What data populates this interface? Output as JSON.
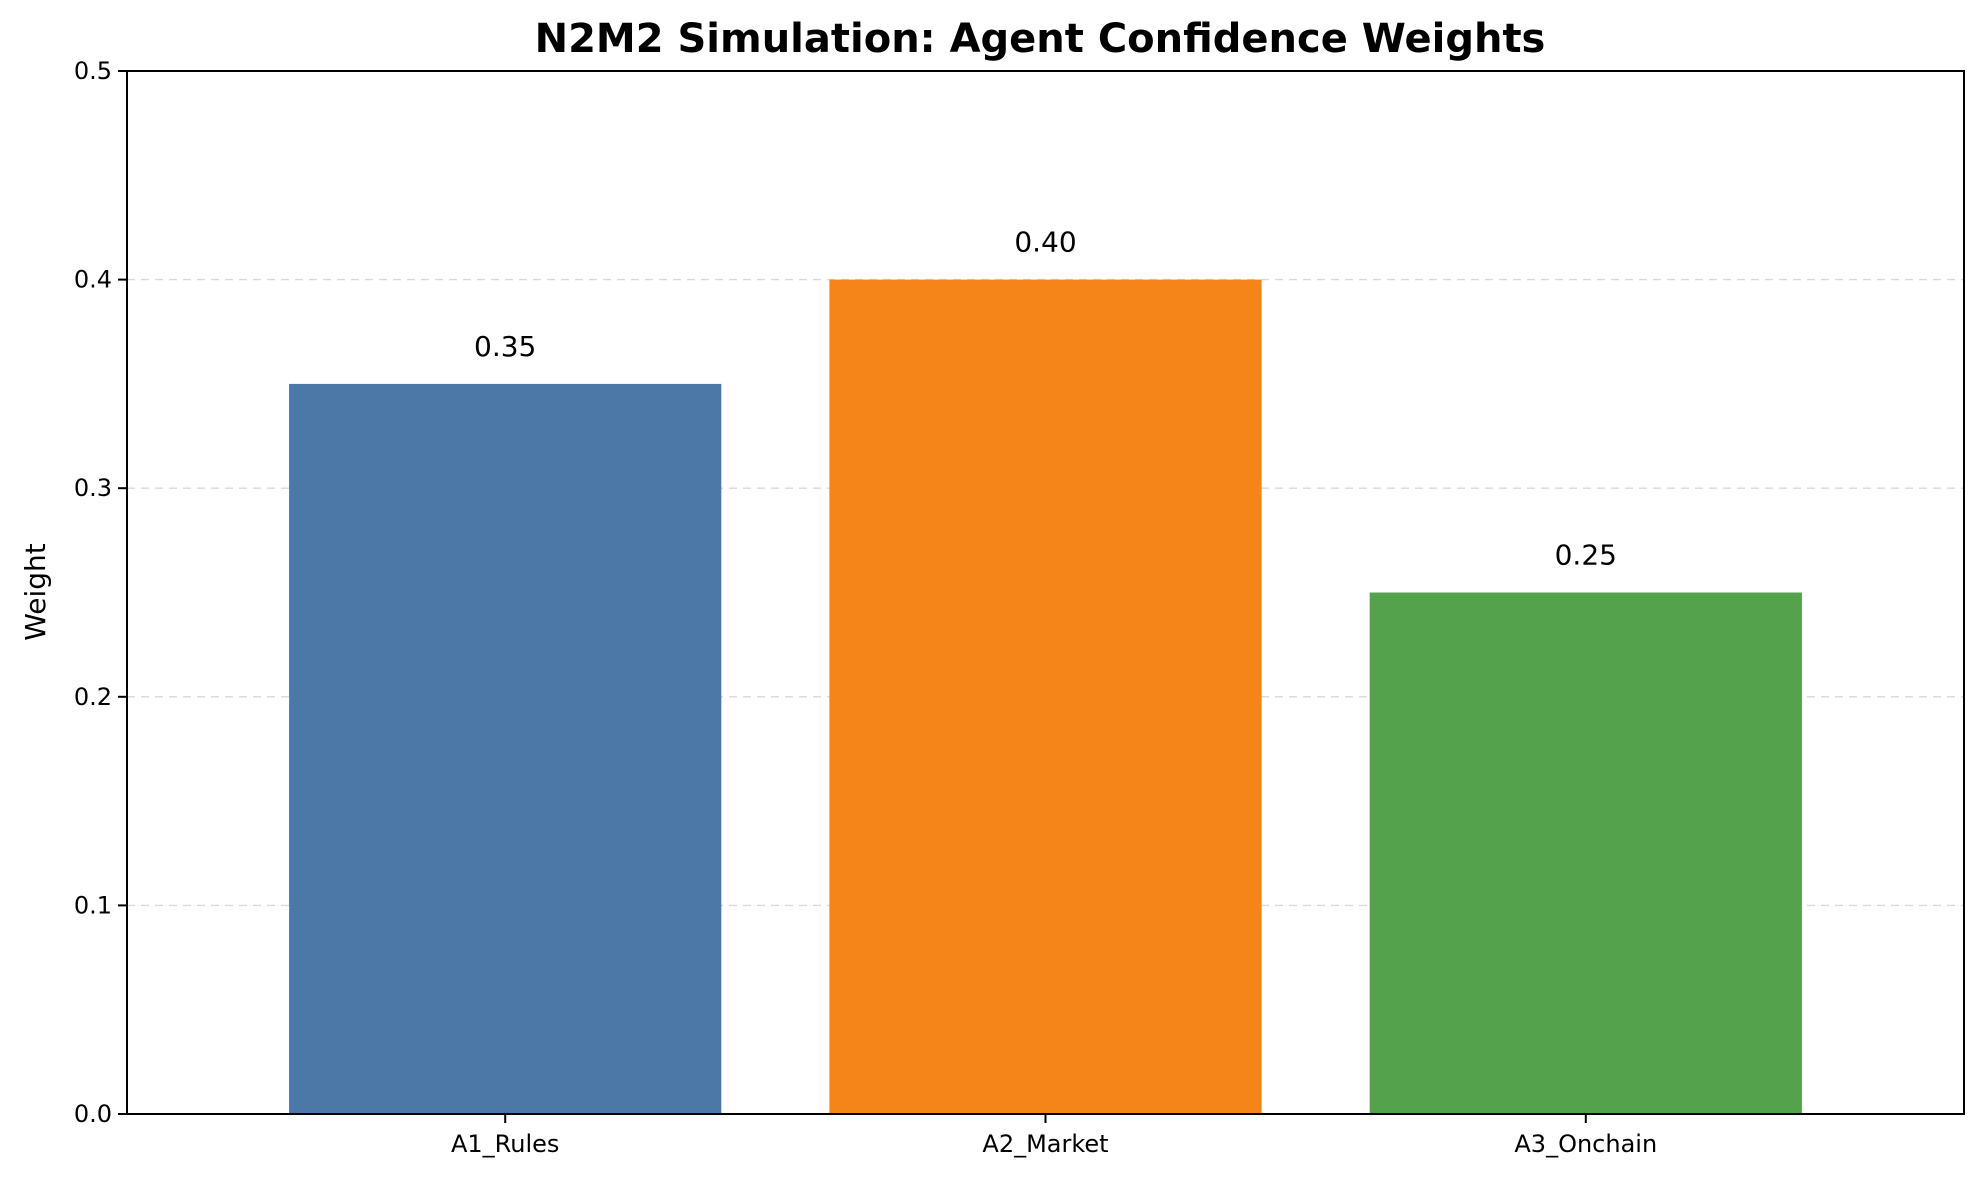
{
  "chart_data": {
    "type": "bar",
    "title": "N2M2 Simulation: Agent Confidence Weights",
    "xlabel": "",
    "ylabel": "Weight",
    "categories": [
      "A1_Rules",
      "A2_Market",
      "A3_Onchain"
    ],
    "values": [
      0.35,
      0.4,
      0.25
    ],
    "value_labels": [
      "0.35",
      "0.40",
      "0.25"
    ],
    "colors": [
      "#4c78a8",
      "#f58518",
      "#54a24b"
    ],
    "ylim": [
      0,
      0.5
    ],
    "yticks": [
      0.0,
      0.1,
      0.2,
      0.3,
      0.4,
      0.5
    ],
    "ytick_labels": [
      "0.0",
      "0.1",
      "0.2",
      "0.3",
      "0.4",
      "0.5"
    ],
    "grid": "y-dashed",
    "legend": "none"
  }
}
